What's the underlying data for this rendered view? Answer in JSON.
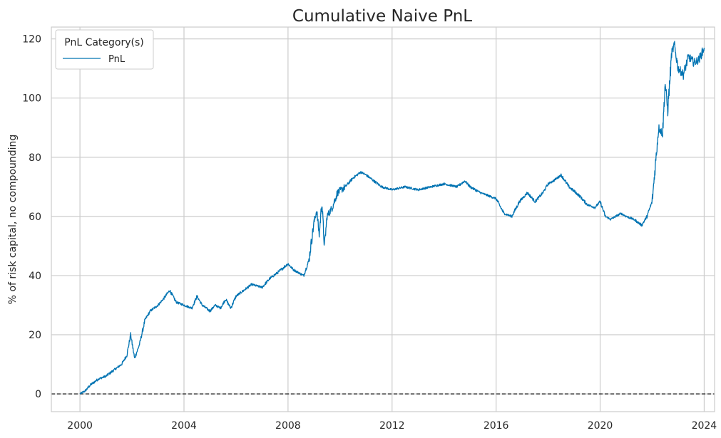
{
  "chart_data": {
    "type": "line",
    "title": "Cumulative Naive PnL",
    "xlabel": "",
    "ylabel": "% of risk capital, no compounding",
    "xlim": [
      1998.9,
      2024.4
    ],
    "ylim": [
      -6,
      124
    ],
    "x_ticks": [
      2000,
      2004,
      2008,
      2012,
      2016,
      2020,
      2024
    ],
    "x_tick_labels": [
      "2000",
      "2004",
      "2008",
      "2012",
      "2016",
      "2020",
      "2024"
    ],
    "y_ticks": [
      0,
      20,
      40,
      60,
      80,
      100,
      120
    ],
    "y_tick_labels": [
      "0",
      "20",
      "40",
      "60",
      "80",
      "100",
      "120"
    ],
    "grid": true,
    "legend": {
      "title": "PnL Category(s)",
      "position": "top-left",
      "entries": [
        "PnL"
      ]
    },
    "reference_line": {
      "y": 0,
      "style": "dashed",
      "color": "#000000"
    },
    "series": [
      {
        "name": "PnL",
        "color": "#0173b2",
        "x": [
          2000.0,
          2000.2,
          2000.4,
          2000.7,
          2001.0,
          2001.3,
          2001.6,
          2001.8,
          2001.95,
          2002.1,
          2002.3,
          2002.5,
          2002.7,
          2003.0,
          2003.2,
          2003.45,
          2003.7,
          2004.0,
          2004.3,
          2004.5,
          2004.7,
          2005.0,
          2005.2,
          2005.4,
          2005.6,
          2005.8,
          2006.0,
          2006.3,
          2006.6,
          2007.0,
          2007.3,
          2007.6,
          2008.0,
          2008.2,
          2008.4,
          2008.6,
          2008.8,
          2009.0,
          2009.1,
          2009.2,
          2009.3,
          2009.4,
          2009.5,
          2009.7,
          2009.9,
          2010.2,
          2010.5,
          2010.8,
          2011.0,
          2011.3,
          2011.6,
          2012.0,
          2012.5,
          2013.0,
          2013.5,
          2014.0,
          2014.5,
          2014.8,
          2015.0,
          2015.4,
          2015.7,
          2016.0,
          2016.3,
          2016.6,
          2016.9,
          2017.2,
          2017.5,
          2017.8,
          2018.0,
          2018.2,
          2018.5,
          2018.8,
          2019.2,
          2019.5,
          2019.8,
          2020.0,
          2020.2,
          2020.4,
          2020.6,
          2020.8,
          2021.0,
          2021.3,
          2021.6,
          2021.8,
          2022.0,
          2022.1,
          2022.25,
          2022.4,
          2022.5,
          2022.6,
          2022.75,
          2022.85,
          2023.0,
          2023.2,
          2023.4,
          2023.6,
          2023.8,
          2024.0
        ],
        "values": [
          0,
          1,
          3,
          5,
          6,
          8,
          10,
          13,
          20,
          12,
          17,
          25,
          28,
          30,
          32,
          35,
          31,
          30,
          29,
          33,
          30,
          28,
          30,
          29,
          32,
          29,
          33,
          35,
          37,
          36,
          39,
          41,
          44,
          42,
          41,
          40,
          45,
          58,
          62,
          54,
          65,
          50,
          60,
          63,
          68,
          70,
          73,
          75,
          74,
          72,
          70,
          69,
          70,
          69,
          70,
          71,
          70,
          72,
          70,
          68,
          67,
          66,
          61,
          60,
          65,
          68,
          65,
          68,
          71,
          72,
          74,
          70,
          67,
          64,
          63,
          65,
          60,
          59,
          60,
          61,
          60,
          59,
          57,
          60,
          65,
          75,
          90,
          88,
          105,
          96,
          115,
          118,
          110,
          108,
          114,
          112,
          113,
          117
        ]
      }
    ]
  }
}
